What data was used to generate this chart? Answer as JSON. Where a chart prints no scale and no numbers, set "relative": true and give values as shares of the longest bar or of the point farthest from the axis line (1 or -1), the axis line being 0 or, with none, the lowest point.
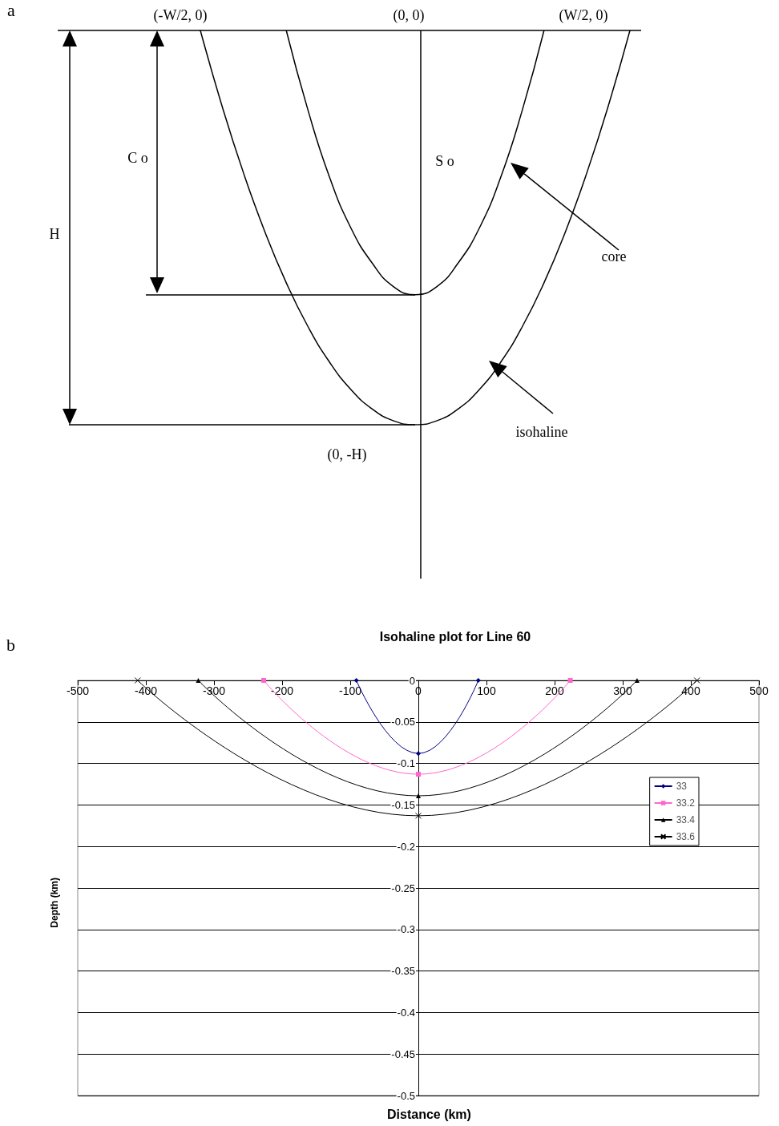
{
  "chart_data": [
    {
      "type": "line",
      "relative": true,
      "annotations": [
        "a",
        "(-W/2, 0)",
        "(0, 0)",
        "(W/2, 0)",
        "C o",
        "S o",
        "H",
        "core",
        "isohaline",
        "(0, -H)"
      ],
      "categories": [
        null,
        null,
        null,
        null,
        null,
        null,
        null,
        null,
        null,
        null,
        null,
        null,
        null,
        null,
        null,
        null,
        null,
        null,
        null,
        null,
        null
      ],
      "ref_lines": [
        {
          "axis": "y",
          "value": -0.67,
          "color": "#000000"
        },
        {
          "axis": "y",
          "value": -1,
          "color": "#000000"
        }
      ],
      "series": [
        {
          "color": "#000000",
          "values": [
            null,
            null,
            null,
            null,
            0,
            -0.2,
            -0.37,
            -0.5,
            -0.59,
            -0.65,
            -0.67,
            -0.65,
            -0.59,
            -0.5,
            -0.37,
            -0.2,
            0,
            null,
            null,
            null,
            null
          ]
        },
        {
          "color": "#000000",
          "values": [
            0,
            -0.19,
            -0.36,
            -0.51,
            -0.64,
            -0.75,
            -0.84,
            -0.91,
            -0.96,
            -0.99,
            -1,
            -0.99,
            -0.96,
            -0.91,
            -0.84,
            -0.75,
            -0.64,
            -0.51,
            -0.36,
            -0.19,
            0
          ]
        }
      ]
    },
    {
      "type": "line",
      "title": "Isohaline plot for Line 60",
      "xlabel": "Distance (km)",
      "ylabel": "Depth (km)",
      "annotations": [
        "b"
      ],
      "xlim": [
        -500,
        500
      ],
      "xticks": [
        -500,
        -400,
        -300,
        -200,
        -100,
        0,
        100,
        200,
        300,
        400,
        500
      ],
      "ylim": [
        -0.5,
        0
      ],
      "yticks": [
        -0.5,
        -0.45,
        -0.4,
        -0.35,
        -0.3,
        -0.25,
        -0.2,
        -0.15,
        -0.1,
        -0.05,
        0
      ],
      "grid": "y",
      "legend": "right",
      "series": [
        {
          "name": "33",
          "color": "#000080",
          "marker": "diamond",
          "x": [
            -91,
            0,
            88
          ],
          "values": [
            0,
            -0.088,
            0
          ]
        },
        {
          "name": "33.2",
          "color": "#ff66cc",
          "marker": "square",
          "x": [
            -227,
            0,
            223
          ],
          "values": [
            0,
            -0.113,
            0
          ]
        },
        {
          "name": "33.4",
          "color": "#000000",
          "marker": "triangle",
          "x": [
            -323,
            0,
            321
          ],
          "values": [
            0,
            -0.139,
            0
          ]
        },
        {
          "name": "33.6",
          "color": "#000000",
          "marker": "cross",
          "x": [
            -412,
            0,
            409
          ],
          "values": [
            0,
            -0.163,
            0
          ]
        }
      ]
    }
  ]
}
